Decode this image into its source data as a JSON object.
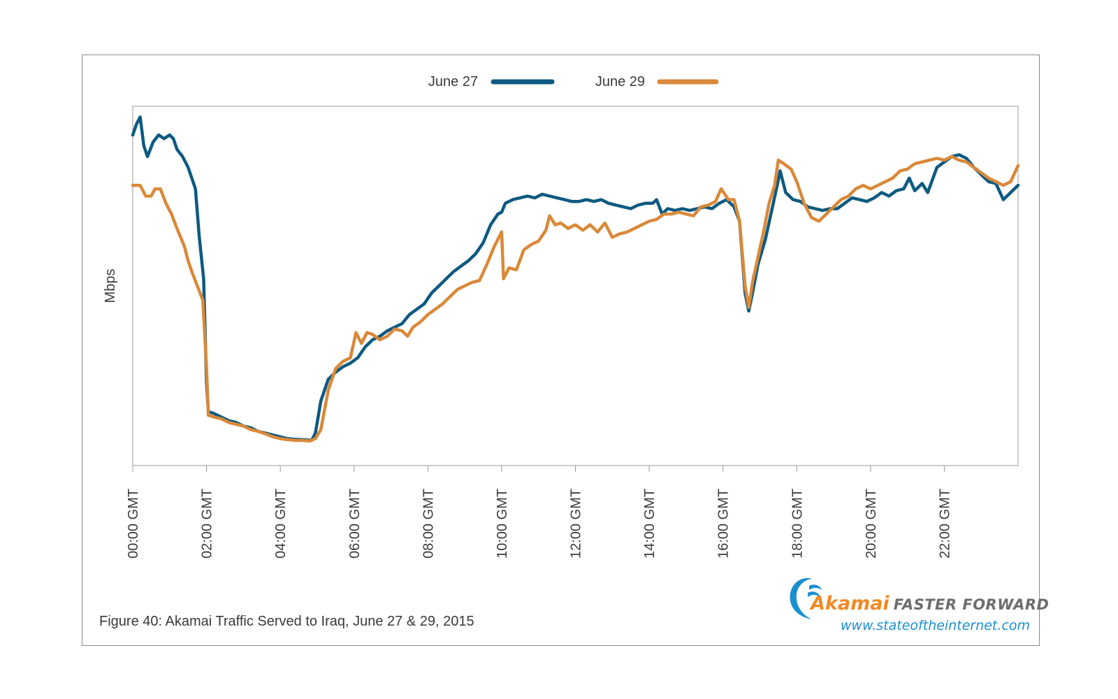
{
  "caption": "Figure 40: Akamai Traffic Served to Iraq, June 27 & 29, 2015",
  "logo": {
    "brand": "Akamai",
    "tagline": "FASTER FORWARD",
    "url": "www.stateoftheinternet.com"
  },
  "colors": {
    "june27": "#0e5a80",
    "june29": "#d9893a",
    "frame": "#8a8a8a",
    "logo_orange": "#f08a24",
    "logo_blue": "#1a8fce"
  },
  "chart_data": {
    "type": "line",
    "ylabel": "Mbps",
    "xlabel": "",
    "x_unit": "hours GMT",
    "xlim": [
      0,
      24
    ],
    "ylim": [
      0,
      100
    ],
    "y_tick_labels": "none printed",
    "grid": false,
    "legend_position": "top",
    "x_tick_labels": [
      "00:00 GMT",
      "02:00 GMT",
      "04:00 GMT",
      "06:00 GMT",
      "08:00 GMT",
      "10:00 GMT",
      "12:00 GMT",
      "14:00 GMT",
      "16:00 GMT",
      "18:00 GMT",
      "20:00 GMT",
      "22:00 GMT"
    ],
    "series": [
      {
        "name": "June 27",
        "points": [
          [
            0,
            92
          ],
          [
            0.1,
            95
          ],
          [
            0.2,
            97
          ],
          [
            0.3,
            89
          ],
          [
            0.4,
            86
          ],
          [
            0.55,
            90
          ],
          [
            0.7,
            92
          ],
          [
            0.85,
            91
          ],
          [
            1,
            92
          ],
          [
            1.1,
            91
          ],
          [
            1.2,
            88
          ],
          [
            1.35,
            86
          ],
          [
            1.5,
            83
          ],
          [
            1.6,
            80
          ],
          [
            1.7,
            77
          ],
          [
            1.8,
            64
          ],
          [
            1.92,
            52
          ],
          [
            2,
            23
          ],
          [
            2.05,
            15
          ],
          [
            2.2,
            14.5
          ],
          [
            2.4,
            13.5
          ],
          [
            2.6,
            12.5
          ],
          [
            2.8,
            12
          ],
          [
            3,
            11
          ],
          [
            3.2,
            10.5
          ],
          [
            3.4,
            9.5
          ],
          [
            3.6,
            9
          ],
          [
            3.8,
            8.5
          ],
          [
            4,
            8
          ],
          [
            4.2,
            7.5
          ],
          [
            4.4,
            7.3
          ],
          [
            4.6,
            7.2
          ],
          [
            4.85,
            7
          ],
          [
            4.95,
            9
          ],
          [
            5.1,
            18
          ],
          [
            5.3,
            24
          ],
          [
            5.5,
            26
          ],
          [
            5.7,
            27.5
          ],
          [
            5.9,
            28.5
          ],
          [
            6.1,
            30
          ],
          [
            6.3,
            33
          ],
          [
            6.5,
            35
          ],
          [
            6.7,
            36
          ],
          [
            6.9,
            37.5
          ],
          [
            7.1,
            38.5
          ],
          [
            7.3,
            39.5
          ],
          [
            7.5,
            42
          ],
          [
            7.7,
            43.5
          ],
          [
            7.9,
            45
          ],
          [
            8.1,
            48
          ],
          [
            8.3,
            50
          ],
          [
            8.5,
            52
          ],
          [
            8.7,
            54
          ],
          [
            8.9,
            55.5
          ],
          [
            9.1,
            57
          ],
          [
            9.3,
            59
          ],
          [
            9.5,
            62
          ],
          [
            9.7,
            67
          ],
          [
            9.9,
            70
          ],
          [
            10,
            70.5
          ],
          [
            10.1,
            73
          ],
          [
            10.3,
            74
          ],
          [
            10.5,
            74.5
          ],
          [
            10.7,
            75
          ],
          [
            10.9,
            74.5
          ],
          [
            11.1,
            75.5
          ],
          [
            11.3,
            75
          ],
          [
            11.5,
            74.5
          ],
          [
            11.7,
            74
          ],
          [
            11.9,
            73.5
          ],
          [
            12.1,
            73.5
          ],
          [
            12.3,
            74
          ],
          [
            12.5,
            73.5
          ],
          [
            12.7,
            74
          ],
          [
            12.9,
            73
          ],
          [
            13.1,
            72.5
          ],
          [
            13.3,
            72
          ],
          [
            13.5,
            71.5
          ],
          [
            13.7,
            72.5
          ],
          [
            13.9,
            73
          ],
          [
            14.1,
            73
          ],
          [
            14.2,
            74
          ],
          [
            14.35,
            70
          ],
          [
            14.5,
            71.5
          ],
          [
            14.7,
            71
          ],
          [
            14.9,
            71.5
          ],
          [
            15.1,
            71
          ],
          [
            15.3,
            71.5
          ],
          [
            15.5,
            72
          ],
          [
            15.7,
            71.5
          ],
          [
            15.9,
            73
          ],
          [
            16.1,
            74
          ],
          [
            16.3,
            72
          ],
          [
            16.45,
            68
          ],
          [
            16.6,
            48
          ],
          [
            16.7,
            43
          ],
          [
            16.8,
            48
          ],
          [
            16.95,
            56
          ],
          [
            17.15,
            63
          ],
          [
            17.3,
            70
          ],
          [
            17.45,
            77
          ],
          [
            17.55,
            82
          ],
          [
            17.7,
            76
          ],
          [
            17.9,
            74
          ],
          [
            18.1,
            73.5
          ],
          [
            18.3,
            72
          ],
          [
            18.5,
            71.5
          ],
          [
            18.7,
            71
          ],
          [
            18.9,
            71.5
          ],
          [
            19.1,
            71.5
          ],
          [
            19.3,
            73
          ],
          [
            19.5,
            74.5
          ],
          [
            19.7,
            74
          ],
          [
            19.9,
            73.5
          ],
          [
            20.1,
            74.5
          ],
          [
            20.3,
            76
          ],
          [
            20.5,
            75
          ],
          [
            20.7,
            76.5
          ],
          [
            20.9,
            77
          ],
          [
            21.05,
            80
          ],
          [
            21.2,
            76.5
          ],
          [
            21.4,
            78.5
          ],
          [
            21.55,
            76
          ],
          [
            21.8,
            83
          ],
          [
            22,
            84.5
          ],
          [
            22.2,
            86
          ],
          [
            22.4,
            86.5
          ],
          [
            22.6,
            85.5
          ],
          [
            22.8,
            83
          ],
          [
            23,
            81
          ],
          [
            23.2,
            79
          ],
          [
            23.4,
            78.5
          ],
          [
            23.6,
            74
          ],
          [
            23.8,
            76
          ],
          [
            24,
            78
          ]
        ]
      },
      {
        "name": "June 29",
        "points": [
          [
            0,
            78
          ],
          [
            0.2,
            78
          ],
          [
            0.35,
            75
          ],
          [
            0.5,
            75
          ],
          [
            0.6,
            77
          ],
          [
            0.75,
            77
          ],
          [
            0.9,
            73
          ],
          [
            1.05,
            70
          ],
          [
            1.2,
            66
          ],
          [
            1.4,
            61
          ],
          [
            1.5,
            57
          ],
          [
            1.6,
            54
          ],
          [
            1.75,
            50
          ],
          [
            1.9,
            46
          ],
          [
            2,
            27
          ],
          [
            2.05,
            14
          ],
          [
            2.2,
            13.5
          ],
          [
            2.4,
            13
          ],
          [
            2.6,
            12
          ],
          [
            2.8,
            11.5
          ],
          [
            3,
            11
          ],
          [
            3.2,
            10
          ],
          [
            3.4,
            9.5
          ],
          [
            3.6,
            8.8
          ],
          [
            3.8,
            8
          ],
          [
            4,
            7.5
          ],
          [
            4.2,
            7.2
          ],
          [
            4.4,
            7
          ],
          [
            4.6,
            7
          ],
          [
            4.8,
            6.8
          ],
          [
            4.95,
            7.5
          ],
          [
            5.1,
            10
          ],
          [
            5.3,
            21
          ],
          [
            5.5,
            27
          ],
          [
            5.7,
            29
          ],
          [
            5.9,
            30
          ],
          [
            6.05,
            37
          ],
          [
            6.2,
            34
          ],
          [
            6.35,
            37
          ],
          [
            6.5,
            36.5
          ],
          [
            6.7,
            35
          ],
          [
            6.9,
            36
          ],
          [
            7.1,
            38
          ],
          [
            7.3,
            37.5
          ],
          [
            7.45,
            36
          ],
          [
            7.6,
            38.5
          ],
          [
            7.8,
            40
          ],
          [
            8,
            42
          ],
          [
            8.2,
            43.5
          ],
          [
            8.4,
            45
          ],
          [
            8.6,
            47
          ],
          [
            8.8,
            49
          ],
          [
            9,
            50
          ],
          [
            9.2,
            51
          ],
          [
            9.4,
            51.5
          ],
          [
            9.6,
            56
          ],
          [
            9.8,
            61
          ],
          [
            10,
            65
          ],
          [
            10.05,
            52
          ],
          [
            10.2,
            55
          ],
          [
            10.4,
            54.5
          ],
          [
            10.6,
            60
          ],
          [
            10.8,
            61.5
          ],
          [
            11,
            62.5
          ],
          [
            11.2,
            65.5
          ],
          [
            11.3,
            69.5
          ],
          [
            11.45,
            67
          ],
          [
            11.6,
            67.5
          ],
          [
            11.8,
            66
          ],
          [
            12,
            67
          ],
          [
            12.2,
            65.5
          ],
          [
            12.4,
            67
          ],
          [
            12.6,
            65
          ],
          [
            12.8,
            67.5
          ],
          [
            13,
            63.5
          ],
          [
            13.2,
            64.5
          ],
          [
            13.4,
            65
          ],
          [
            13.6,
            66
          ],
          [
            13.8,
            67
          ],
          [
            14,
            68
          ],
          [
            14.2,
            68.5
          ],
          [
            14.4,
            70
          ],
          [
            14.6,
            70
          ],
          [
            14.8,
            70.5
          ],
          [
            15,
            70
          ],
          [
            15.2,
            69.5
          ],
          [
            15.4,
            72
          ],
          [
            15.6,
            72.5
          ],
          [
            15.8,
            73.5
          ],
          [
            15.95,
            77
          ],
          [
            16.15,
            74
          ],
          [
            16.3,
            74
          ],
          [
            16.45,
            68
          ],
          [
            16.6,
            50
          ],
          [
            16.7,
            44
          ],
          [
            16.8,
            51
          ],
          [
            16.95,
            58
          ],
          [
            17.1,
            65
          ],
          [
            17.25,
            73
          ],
          [
            17.4,
            78
          ],
          [
            17.5,
            85
          ],
          [
            17.65,
            84
          ],
          [
            17.85,
            82.5
          ],
          [
            18,
            79
          ],
          [
            18.2,
            73
          ],
          [
            18.4,
            69
          ],
          [
            18.6,
            68
          ],
          [
            18.8,
            70
          ],
          [
            19,
            72
          ],
          [
            19.2,
            74
          ],
          [
            19.4,
            75
          ],
          [
            19.6,
            77
          ],
          [
            19.8,
            78
          ],
          [
            20,
            77
          ],
          [
            20.2,
            78
          ],
          [
            20.4,
            79
          ],
          [
            20.6,
            80
          ],
          [
            20.8,
            82
          ],
          [
            21,
            82.5
          ],
          [
            21.2,
            84
          ],
          [
            21.4,
            84.5
          ],
          [
            21.6,
            85
          ],
          [
            21.8,
            85.5
          ],
          [
            22,
            85
          ],
          [
            22.2,
            86
          ],
          [
            22.4,
            85
          ],
          [
            22.6,
            84.5
          ],
          [
            22.8,
            83
          ],
          [
            23,
            81.5
          ],
          [
            23.2,
            80
          ],
          [
            23.4,
            79
          ],
          [
            23.6,
            78
          ],
          [
            23.8,
            79
          ],
          [
            24,
            83.5
          ]
        ]
      }
    ]
  }
}
